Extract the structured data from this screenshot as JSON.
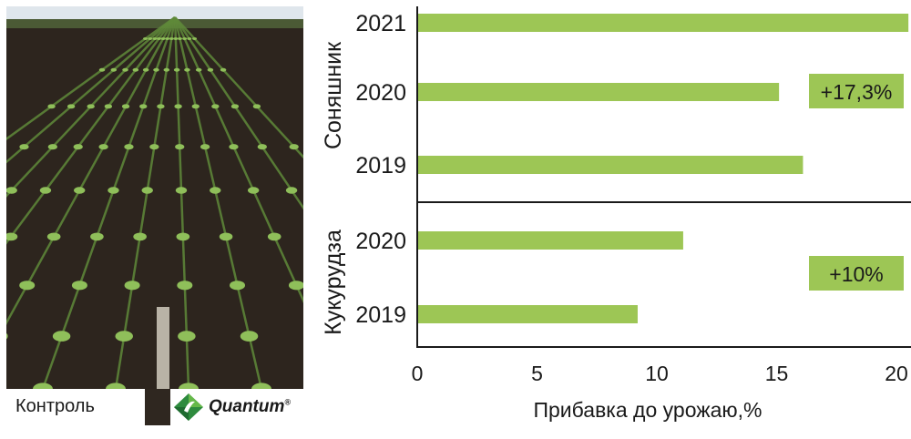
{
  "photo": {
    "caption_left": "Контроль",
    "caption_right": "Quantum",
    "trademark": "®"
  },
  "chart_data": {
    "type": "bar",
    "orientation": "horizontal",
    "xlabel": "Прибавка до урожаю,%",
    "xlim": [
      0,
      20
    ],
    "xticks": [
      "0",
      "5",
      "10",
      "15",
      "20"
    ],
    "grid": false,
    "colors": {
      "bar": "#9dc655",
      "badge": "#9dc655"
    },
    "groups": [
      {
        "name": "Соняшник",
        "categories": [
          "2021",
          "2020",
          "2019"
        ],
        "values": [
          20.5,
          15.1,
          16.1
        ],
        "annotation": "+17,3%"
      },
      {
        "name": "Кукурудза",
        "categories": [
          "2020",
          "2019"
        ],
        "values": [
          11.1,
          9.2
        ],
        "annotation": "+10%"
      }
    ]
  }
}
